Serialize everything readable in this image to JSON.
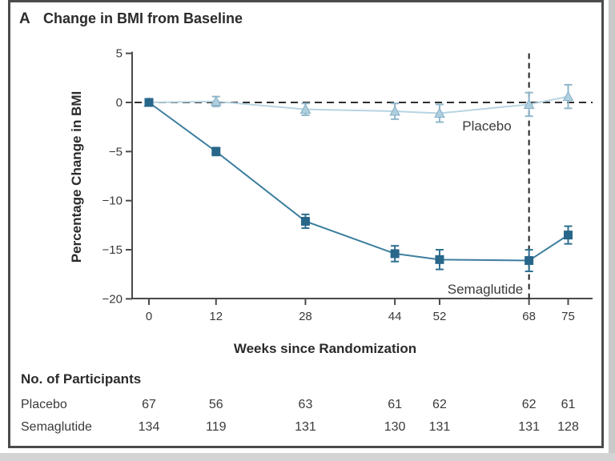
{
  "figure": {
    "panel_label": "A",
    "title": "Change in BMI from Baseline"
  },
  "chart_data": {
    "type": "line",
    "title": "Change in BMI from Baseline",
    "xlabel": "Weeks since Randomization",
    "ylabel": "Percentage Change in BMI",
    "x": [
      0,
      12,
      28,
      44,
      52,
      68,
      75
    ],
    "x_tick_labels": [
      "0",
      "12",
      "28",
      "44",
      "52",
      "68",
      "75"
    ],
    "yticks": [
      5,
      0,
      -5,
      -10,
      -15,
      -20
    ],
    "y_tick_labels": [
      "5",
      "0",
      "−5",
      "−10",
      "−15",
      "−20"
    ],
    "ylim": [
      -20,
      5
    ],
    "grid": false,
    "legend_position": "inline-annotations",
    "reference_lines": {
      "horizontal_at_y": 0,
      "vertical_at_week": 68
    },
    "series": [
      {
        "name": "Placebo",
        "marker": "triangle",
        "line_color": "#b7d4e2",
        "marker_fill": "#aecfdf",
        "marker_stroke": "#85aec5",
        "error_color": "#8fb6ca",
        "values": [
          0,
          0.1,
          -0.7,
          -0.9,
          -1.1,
          -0.2,
          0.6
        ],
        "errors": [
          0.2,
          0.5,
          0.6,
          0.8,
          0.9,
          1.2,
          1.2
        ]
      },
      {
        "name": "Semaglutide",
        "marker": "square",
        "line_color": "#3c7e9e",
        "marker_fill": "#28678a",
        "marker_stroke": "#28678a",
        "error_color": "#2e7091",
        "values": [
          0,
          -5,
          -12.1,
          -15.4,
          -16.0,
          -16.1,
          -13.5
        ],
        "errors": [
          0.2,
          0.4,
          0.7,
          0.8,
          1.0,
          1.1,
          0.9
        ]
      }
    ],
    "annotations": [
      {
        "text": "Placebo"
      },
      {
        "text": "Semaglutide"
      }
    ]
  },
  "participants": {
    "header": "No. of Participants",
    "rows": [
      {
        "label": "Placebo",
        "values": [
          "67",
          "56",
          "63",
          "61",
          "62",
          "62",
          "61"
        ]
      },
      {
        "label": "Semaglutide",
        "values": [
          "134",
          "119",
          "131",
          "130",
          "131",
          "131",
          "128"
        ]
      }
    ]
  },
  "colors": {
    "axis": "#4a4a4a",
    "text": "#2b2b2b",
    "tick_text": "#3a3a3a",
    "zero_dash": "#2f2f2f",
    "vertical_dash": "#222222",
    "frame_border": "#4b4b4b",
    "outer_gray": "#cccccc"
  }
}
